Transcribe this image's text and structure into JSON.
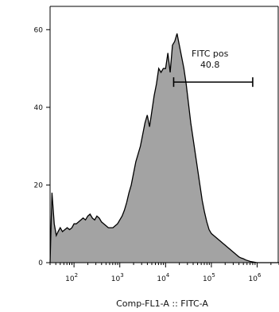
{
  "chart_data": {
    "type": "area",
    "title": "",
    "xlabel": "Comp-FL1-A :: FITC-A",
    "ylabel": "",
    "x_scale": "log",
    "xlim": [
      30,
      3000000
    ],
    "ylim": [
      0,
      66
    ],
    "x_ticks": [
      {
        "value": 100,
        "base": "10",
        "exp": "2"
      },
      {
        "value": 1000,
        "base": "10",
        "exp": "3"
      },
      {
        "value": 10000,
        "base": "10",
        "exp": "4"
      },
      {
        "value": 100000,
        "base": "10",
        "exp": "5"
      },
      {
        "value": 1000000,
        "base": "10",
        "exp": "6"
      }
    ],
    "y_ticks": [
      {
        "value": 0,
        "label": "0"
      },
      {
        "value": 20,
        "label": "20"
      },
      {
        "value": 40,
        "label": "40"
      },
      {
        "value": 60,
        "label": "60"
      }
    ],
    "fill_color": "#a3a3a3",
    "line_color": "#000000",
    "series": [
      {
        "x": [
          30,
          33,
          37,
          41,
          45,
          50,
          56,
          63,
          71,
          80,
          90,
          100,
          112,
          126,
          141,
          158,
          178,
          200,
          224,
          251,
          282,
          316,
          355,
          398,
          447,
          501,
          562,
          631,
          708,
          794,
          891,
          1000,
          1122,
          1259,
          1413,
          1585,
          1778,
          1995,
          2239,
          2512,
          2818,
          3162,
          3548,
          3981,
          4467,
          5012,
          5623,
          6310,
          7079,
          7943,
          8913,
          10000,
          11220,
          12589,
          14125,
          15849,
          17783,
          19953,
          22387,
          25119,
          28184,
          31623,
          35481,
          39811,
          44668,
          50119,
          56234,
          63096,
          70795,
          79433,
          89125,
          100000,
          112202,
          125893,
          141254,
          158489,
          177828,
          199526,
          223872,
          251189,
          281838,
          316228,
          354813,
          398107,
          446684,
          501187,
          562341,
          630957,
          707946,
          794328,
          891251,
          1000000,
          1258925,
          1584893,
          1995262,
          2511886,
          3000000
        ],
        "y": [
          0,
          18,
          10,
          7,
          8,
          9,
          8,
          8.5,
          9,
          8.5,
          9,
          10,
          10,
          10.5,
          11,
          11.5,
          11,
          12,
          12.5,
          11.5,
          11,
          12,
          11.5,
          10.5,
          10,
          9.5,
          9,
          9,
          9,
          9.5,
          10,
          11,
          12,
          13.5,
          15.5,
          18,
          20,
          23,
          26,
          28,
          30,
          33,
          36,
          38,
          35,
          39,
          43,
          46,
          50,
          49,
          50,
          50,
          54,
          49,
          56,
          57,
          59,
          56,
          53,
          50,
          46,
          41,
          36,
          32,
          28,
          24,
          20,
          16,
          13,
          10.5,
          8.5,
          7.5,
          7,
          6.5,
          6,
          5.5,
          5,
          4.5,
          4,
          3.5,
          3,
          2.5,
          2,
          1.5,
          1.2,
          1,
          0.7,
          0.5,
          0.3,
          0.2,
          0.1,
          0,
          0,
          0,
          0,
          0,
          0
        ]
      }
    ],
    "gate": {
      "name": "FITC pos",
      "value": "40.8",
      "x_start": 15000,
      "x_end": 800000,
      "y": 46.5
    }
  }
}
